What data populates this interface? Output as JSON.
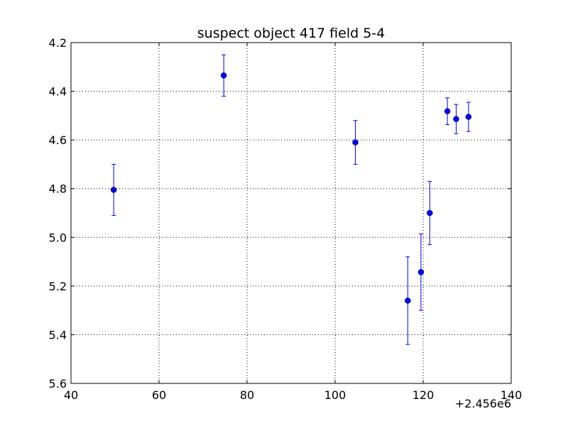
{
  "chart_data": {
    "type": "scatter",
    "title": "suspect object 417 field 5-4",
    "xlabel": "",
    "ylabel": "",
    "x_offset_label": "+2.456e6",
    "xlim": [
      40,
      140
    ],
    "ylim": [
      4.2,
      5.6
    ],
    "y_inverted": true,
    "grid": true,
    "x_ticks": [
      40,
      60,
      80,
      100,
      120,
      140
    ],
    "x_tick_labels": [
      "40",
      "60",
      "80",
      "100",
      "120",
      "140"
    ],
    "y_ticks": [
      4.2,
      4.4,
      4.6,
      4.8,
      5.0,
      5.2,
      5.4,
      5.6
    ],
    "y_tick_labels": [
      "4.2",
      "4.4",
      "4.6",
      "4.8",
      "5.0",
      "5.2",
      "5.4",
      "5.6"
    ],
    "series": [
      {
        "color": "#0000ff",
        "marker": "circle",
        "points": [
          {
            "x": 49.7,
            "y": 4.805,
            "yerr": 0.105
          },
          {
            "x": 74.7,
            "y": 4.335,
            "yerr": 0.085
          },
          {
            "x": 104.6,
            "y": 4.61,
            "yerr": 0.09
          },
          {
            "x": 116.5,
            "y": 5.26,
            "yerr": 0.18
          },
          {
            "x": 119.5,
            "y": 5.143,
            "yerr": 0.157
          },
          {
            "x": 121.5,
            "y": 4.9,
            "yerr": 0.13
          },
          {
            "x": 125.5,
            "y": 4.482,
            "yerr": 0.055
          },
          {
            "x": 127.5,
            "y": 4.514,
            "yerr": 0.06
          },
          {
            "x": 130.3,
            "y": 4.505,
            "yerr": 0.06
          }
        ]
      }
    ]
  }
}
